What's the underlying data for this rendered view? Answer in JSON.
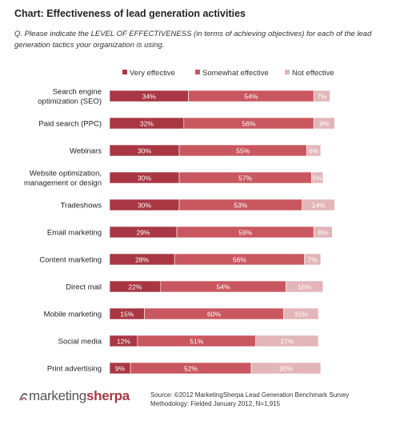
{
  "header": {
    "title": "Chart: Effectiveness of lead generation activities",
    "question": "Q. Please indicate the LEVEL OF EFFECTIVENESS (in terms of achieving objectives) for each of the lead generation tactics your organization is using."
  },
  "footer": {
    "brand_part1": "marketing",
    "brand_part2": "sherpa",
    "source": "Source: ©2012 MarketingSherpa Lead Generation Benchmark Survey",
    "methodology": "Methodology: Fielded January 2012, N=1,915"
  },
  "colors": {
    "very": "#a83743",
    "somewhat": "#c9575f",
    "not": "#e2b5b8"
  },
  "chart_data": {
    "type": "bar",
    "orientation": "horizontal",
    "stacked": true,
    "legend_position": "top-right",
    "categories": [
      [
        "Search engine",
        "optimization (SEO)"
      ],
      [
        "Paid search (PPC)"
      ],
      [
        "Webinars"
      ],
      [
        "Website optimization,",
        "management or design"
      ],
      [
        "Tradeshows"
      ],
      [
        "Email marketing"
      ],
      [
        "Content marketing"
      ],
      [
        "Direct mail"
      ],
      [
        "Mobile marketing"
      ],
      [
        "Social media"
      ],
      [
        "Print advertising"
      ]
    ],
    "series": [
      {
        "name": "Very effective",
        "values": [
          34,
          32,
          30,
          30,
          30,
          29,
          28,
          22,
          15,
          12,
          9
        ]
      },
      {
        "name": "Somewhat effective",
        "values": [
          54,
          56,
          55,
          57,
          53,
          59,
          56,
          54,
          60,
          51,
          52
        ]
      },
      {
        "name": "Not effective",
        "values": [
          7,
          9,
          6,
          5,
          14,
          8,
          7,
          16,
          15,
          27,
          30
        ]
      }
    ],
    "value_suffix": "%"
  }
}
